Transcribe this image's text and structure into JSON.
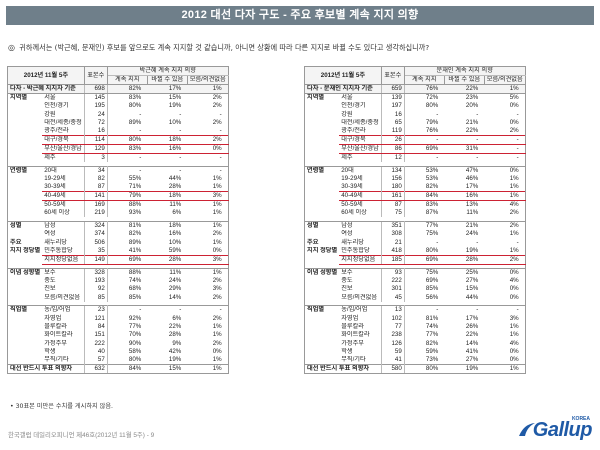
{
  "title": "2012 대선 다자 구도 - 주요 후보별 계속 지지 의향",
  "question_mark": "◎",
  "question": "귀하께서는 (박근혜, 문재인) 후보를 앞으로도 계속 지지할 것 같습니까, 아니면 상황에 따라 다른 지지로 바뀔 수도 있다고 생각하십니까?",
  "note": "• 30표본 미만은 수치를 게시하지 않음.",
  "footer": "한국갤럽 데일리오피니언 제46호(2012년 11월 5주) - 9",
  "logo": {
    "brand": "Gallup",
    "sub": "KOREA",
    "color": "#1f5aa6"
  },
  "tables": [
    {
      "date": "2012년 11월 5주",
      "n_label": "표본수",
      "group_label": "박근혜 계속 지지 의향",
      "cols": [
        "계속 지지",
        "바뀔 수 있음",
        "모름/의견없음"
      ],
      "total": {
        "label": "다자 - 박근혜 지지자 기준",
        "n": "698",
        "a": "82%",
        "b": "17%",
        "c": "1%"
      },
      "rows": [
        {
          "cat": "지역별",
          "sub": "서울",
          "n": "145",
          "a": "83%",
          "b": "15%",
          "c": "2%"
        },
        {
          "cat": "",
          "sub": "인천/경기",
          "n": "195",
          "a": "80%",
          "b": "19%",
          "c": "2%"
        },
        {
          "cat": "",
          "sub": "강원",
          "n": "24",
          "a": "-",
          "b": "-",
          "c": "-"
        },
        {
          "cat": "",
          "sub": "대전/세종/충청",
          "n": "72",
          "a": "89%",
          "b": "10%",
          "c": "2%"
        },
        {
          "cat": "",
          "sub": "광주/전라",
          "n": "16",
          "a": "-",
          "b": "-",
          "c": "-"
        },
        {
          "cat": "",
          "sub": "대구/경북",
          "n": "114",
          "a": "80%",
          "b": "18%",
          "c": "2%",
          "red": true
        },
        {
          "cat": "",
          "sub": "부산/울산/경남",
          "n": "129",
          "a": "83%",
          "b": "16%",
          "c": "0%",
          "red": true
        },
        {
          "cat": "",
          "sub": "제주",
          "n": "3",
          "a": "-",
          "b": "-",
          "c": "-"
        },
        {
          "gap": true
        },
        {
          "cat": "연령별",
          "sub": "20대",
          "n": "34",
          "a": "-",
          "b": "-",
          "c": "-",
          "sep": true
        },
        {
          "cat": "",
          "sub": "19-29세",
          "n": "82",
          "a": "55%",
          "b": "44%",
          "c": "1%"
        },
        {
          "cat": "",
          "sub": "30-39세",
          "n": "87",
          "a": "71%",
          "b": "28%",
          "c": "1%"
        },
        {
          "cat": "",
          "sub": "40-49세",
          "n": "141",
          "a": "79%",
          "b": "18%",
          "c": "3%",
          "red": true
        },
        {
          "cat": "",
          "sub": "50-59세",
          "n": "169",
          "a": "88%",
          "b": "11%",
          "c": "1%"
        },
        {
          "cat": "",
          "sub": "60세 이상",
          "n": "219",
          "a": "93%",
          "b": "6%",
          "c": "1%"
        },
        {
          "gap": true
        },
        {
          "cat": "성별",
          "sub": "남성",
          "n": "324",
          "a": "81%",
          "b": "18%",
          "c": "1%",
          "sep": true
        },
        {
          "cat": "",
          "sub": "여성",
          "n": "374",
          "a": "82%",
          "b": "16%",
          "c": "2%"
        },
        {
          "cat": "주요",
          "sub": "새누리당",
          "n": "506",
          "a": "89%",
          "b": "10%",
          "c": "1%"
        },
        {
          "cat": "지지 정당별",
          "sub": "민주통합당",
          "n": "35",
          "a": "41%",
          "b": "59%",
          "c": "0%"
        },
        {
          "cat": "",
          "sub": "지지정당없음",
          "n": "149",
          "a": "69%",
          "b": "28%",
          "c": "3%",
          "red": true
        },
        {
          "gap": true
        },
        {
          "cat": "이념 성향별",
          "sub": "보수",
          "n": "328",
          "a": "88%",
          "b": "11%",
          "c": "1%",
          "sep": true
        },
        {
          "cat": "",
          "sub": "중도",
          "n": "193",
          "a": "74%",
          "b": "24%",
          "c": "2%"
        },
        {
          "cat": "",
          "sub": "진보",
          "n": "92",
          "a": "68%",
          "b": "29%",
          "c": "3%"
        },
        {
          "cat": "",
          "sub": "모름/의견없음",
          "n": "85",
          "a": "85%",
          "b": "14%",
          "c": "2%"
        },
        {
          "gap": true
        },
        {
          "cat": "직업별",
          "sub": "농/임/어업",
          "n": "23",
          "a": "-",
          "b": "-",
          "c": "-",
          "sep": true
        },
        {
          "cat": "",
          "sub": "자영업",
          "n": "121",
          "a": "92%",
          "b": "6%",
          "c": "2%"
        },
        {
          "cat": "",
          "sub": "블루칼라",
          "n": "84",
          "a": "77%",
          "b": "22%",
          "c": "1%"
        },
        {
          "cat": "",
          "sub": "화이트칼라",
          "n": "151",
          "a": "70%",
          "b": "28%",
          "c": "1%"
        },
        {
          "cat": "",
          "sub": "가정주부",
          "n": "222",
          "a": "90%",
          "b": "9%",
          "c": "2%"
        },
        {
          "cat": "",
          "sub": "학생",
          "n": "40",
          "a": "58%",
          "b": "42%",
          "c": "0%"
        },
        {
          "cat": "",
          "sub": "무직/기타",
          "n": "57",
          "a": "80%",
          "b": "19%",
          "c": "1%"
        },
        {
          "cat": "대선 반드시 투표 의향자",
          "sub": "",
          "n": "632",
          "a": "84%",
          "b": "15%",
          "c": "1%",
          "sep": true,
          "last": true
        }
      ]
    },
    {
      "date": "2012년 11월 5주",
      "n_label": "표본수",
      "group_label": "문재인 계속 지지 의향",
      "cols": [
        "계속 지지",
        "바뀔 수 있음",
        "모름/의견없음"
      ],
      "total": {
        "label": "다자 - 문재인 지지자 기준",
        "n": "659",
        "a": "76%",
        "b": "22%",
        "c": "1%"
      },
      "rows": [
        {
          "cat": "지역별",
          "sub": "서울",
          "n": "139",
          "a": "72%",
          "b": "23%",
          "c": "5%"
        },
        {
          "cat": "",
          "sub": "인천/경기",
          "n": "197",
          "a": "80%",
          "b": "20%",
          "c": "0%"
        },
        {
          "cat": "",
          "sub": "강원",
          "n": "16",
          "a": "-",
          "b": "-",
          "c": "-"
        },
        {
          "cat": "",
          "sub": "대전/세종/충청",
          "n": "65",
          "a": "79%",
          "b": "21%",
          "c": "0%"
        },
        {
          "cat": "",
          "sub": "광주/전라",
          "n": "119",
          "a": "76%",
          "b": "22%",
          "c": "2%"
        },
        {
          "cat": "",
          "sub": "대구/경북",
          "n": "26",
          "a": "-",
          "b": "-",
          "c": "-",
          "red": true
        },
        {
          "cat": "",
          "sub": "부산/울산/경남",
          "n": "86",
          "a": "69%",
          "b": "31%",
          "c": "-",
          "red": true
        },
        {
          "cat": "",
          "sub": "제주",
          "n": "12",
          "a": "-",
          "b": "-",
          "c": "-"
        },
        {
          "gap": true
        },
        {
          "cat": "연령별",
          "sub": "20대",
          "n": "134",
          "a": "53%",
          "b": "47%",
          "c": "0%",
          "sep": true
        },
        {
          "cat": "",
          "sub": "19-29세",
          "n": "156",
          "a": "53%",
          "b": "46%",
          "c": "1%"
        },
        {
          "cat": "",
          "sub": "30-39세",
          "n": "180",
          "a": "82%",
          "b": "17%",
          "c": "1%"
        },
        {
          "cat": "",
          "sub": "40-49세",
          "n": "161",
          "a": "84%",
          "b": "16%",
          "c": "1%",
          "red": true
        },
        {
          "cat": "",
          "sub": "50-59세",
          "n": "87",
          "a": "83%",
          "b": "13%",
          "c": "4%"
        },
        {
          "cat": "",
          "sub": "60세 이상",
          "n": "75",
          "a": "87%",
          "b": "11%",
          "c": "2%"
        },
        {
          "gap": true
        },
        {
          "cat": "성별",
          "sub": "남성",
          "n": "351",
          "a": "77%",
          "b": "21%",
          "c": "2%",
          "sep": true
        },
        {
          "cat": "",
          "sub": "여성",
          "n": "308",
          "a": "75%",
          "b": "24%",
          "c": "1%"
        },
        {
          "cat": "주요",
          "sub": "새누리당",
          "n": "21",
          "a": "-",
          "b": "-",
          "c": "-"
        },
        {
          "cat": "지지 정당별",
          "sub": "민주통합당",
          "n": "418",
          "a": "80%",
          "b": "19%",
          "c": "1%"
        },
        {
          "cat": "",
          "sub": "지지정당없음",
          "n": "185",
          "a": "69%",
          "b": "28%",
          "c": "2%",
          "red": true
        },
        {
          "gap": true
        },
        {
          "cat": "이념 성향별",
          "sub": "보수",
          "n": "93",
          "a": "75%",
          "b": "25%",
          "c": "0%",
          "sep": true
        },
        {
          "cat": "",
          "sub": "중도",
          "n": "222",
          "a": "69%",
          "b": "27%",
          "c": "4%"
        },
        {
          "cat": "",
          "sub": "진보",
          "n": "301",
          "a": "85%",
          "b": "15%",
          "c": "0%"
        },
        {
          "cat": "",
          "sub": "모름/의견없음",
          "n": "45",
          "a": "56%",
          "b": "44%",
          "c": "0%"
        },
        {
          "gap": true
        },
        {
          "cat": "직업별",
          "sub": "농/임/어업",
          "n": "13",
          "a": "-",
          "b": "-",
          "c": "-",
          "sep": true
        },
        {
          "cat": "",
          "sub": "자영업",
          "n": "102",
          "a": "81%",
          "b": "17%",
          "c": "3%"
        },
        {
          "cat": "",
          "sub": "블루칼라",
          "n": "77",
          "a": "74%",
          "b": "26%",
          "c": "1%"
        },
        {
          "cat": "",
          "sub": "화이트칼라",
          "n": "238",
          "a": "77%",
          "b": "22%",
          "c": "1%"
        },
        {
          "cat": "",
          "sub": "가정주부",
          "n": "126",
          "a": "82%",
          "b": "14%",
          "c": "4%"
        },
        {
          "cat": "",
          "sub": "학생",
          "n": "59",
          "a": "59%",
          "b": "41%",
          "c": "0%"
        },
        {
          "cat": "",
          "sub": "무직/기타",
          "n": "41",
          "a": "73%",
          "b": "27%",
          "c": "0%"
        },
        {
          "cat": "대선 반드시 투표 의향자",
          "sub": "",
          "n": "580",
          "a": "80%",
          "b": "19%",
          "c": "1%",
          "sep": true,
          "last": true
        }
      ]
    }
  ]
}
